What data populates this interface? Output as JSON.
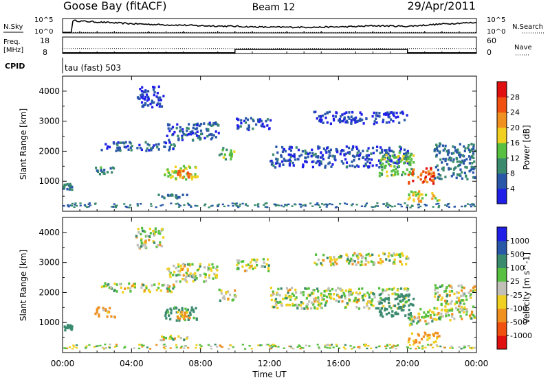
{
  "header": {
    "station": "Goose Bay (fitACF)",
    "beam": "Beam 12",
    "date": "29/Apr/2011"
  },
  "side_labels": {
    "nsky": "N.Sky",
    "nsearch": "N.Search",
    "freq_line1": "Freq.",
    "freq_line2": "[MHz]",
    "nave": "Nave",
    "cpid": "CPID",
    "cpid_text": "tau (fast) 503"
  },
  "colors": {
    "scatter_blue": "#2050b0",
    "ground_gray": "#b8b8b0",
    "frame": "#000000"
  },
  "chart_data": [
    {
      "type": "line",
      "name": "noise-panel",
      "y_tick_labels_left": [
        "10^5",
        "10^0"
      ],
      "y_tick_labels_right": [
        "10^5",
        "10^0"
      ],
      "ylim_log10": [
        0,
        5
      ],
      "series_nsky_log10": [
        [
          0.0,
          0.2
        ],
        [
          0.5,
          0.2
        ],
        [
          0.6,
          4.3
        ],
        [
          1,
          4.1
        ],
        [
          2,
          3.8
        ],
        [
          3,
          3.5
        ],
        [
          4,
          3.2
        ],
        [
          5,
          3.0
        ],
        [
          6,
          2.8
        ],
        [
          7,
          2.7
        ],
        [
          8,
          2.5
        ],
        [
          9,
          2.4
        ],
        [
          10,
          2.3
        ],
        [
          11,
          2.1
        ],
        [
          12,
          2.0
        ],
        [
          13,
          2.0
        ],
        [
          14,
          2.0
        ],
        [
          15,
          2.0
        ],
        [
          16,
          2.1
        ],
        [
          17,
          2.2
        ],
        [
          18,
          2.5
        ],
        [
          19,
          2.4
        ],
        [
          20,
          2.3
        ],
        [
          21,
          2.7
        ],
        [
          22,
          3.1
        ],
        [
          23,
          3.4
        ],
        [
          24,
          3.6
        ]
      ],
      "series_nsearch_log10": [
        [
          0.0,
          0.2
        ],
        [
          24,
          0.2
        ]
      ]
    },
    {
      "type": "line",
      "name": "freq-nave-panel",
      "y_tick_labels_left": [
        "18",
        "8"
      ],
      "y_tick_labels_right": [
        "60",
        "0"
      ],
      "freq_ylim": [
        8,
        18
      ],
      "nave_ylim": [
        0,
        60
      ],
      "series_freq_mhz": [
        [
          0,
          8.5
        ],
        [
          10,
          8.5
        ],
        [
          10,
          10.5
        ],
        [
          20,
          10.5
        ],
        [
          20,
          8.5
        ],
        [
          24,
          8.5
        ]
      ],
      "series_nave": [
        [
          0,
          18
        ],
        [
          24,
          18
        ]
      ]
    },
    {
      "type": "heatmap",
      "name": "power-panel",
      "x_unit": "hours UT",
      "xlim": [
        0,
        24
      ],
      "ylim": [
        0,
        4500
      ],
      "ylabel": "Slant Range [km]",
      "y_ticks": [
        1000,
        2000,
        3000,
        4000
      ],
      "colorbar_label": "Power [dB]",
      "colorbar_ticks": [
        "4",
        "8",
        "12",
        "16",
        "20",
        "24",
        "28"
      ],
      "colorbar_colors": [
        "#1f1fe8",
        "#2a58a8",
        "#3a8a6e",
        "#58c040",
        "#f0d020",
        "#f09020",
        "#f05010",
        "#e01010"
      ],
      "regions": [
        {
          "t0": 0.0,
          "t1": 0.5,
          "r0": 750,
          "r1": 1000,
          "value": 8
        },
        {
          "t0": 1.8,
          "t1": 3.0,
          "r0": 1250,
          "r1": 1500,
          "value": 10
        },
        {
          "t0": 2.2,
          "t1": 6.5,
          "r0": 2050,
          "r1": 2350,
          "value": 6
        },
        {
          "t0": 5.8,
          "t1": 7.8,
          "r0": 1100,
          "r1": 1550,
          "value": 16
        },
        {
          "t0": 6.6,
          "t1": 7.4,
          "r0": 1150,
          "r1": 1400,
          "value": 24
        },
        {
          "t0": 5.5,
          "t1": 7.2,
          "r0": 450,
          "r1": 600,
          "value": 8
        },
        {
          "t0": 4.2,
          "t1": 5.8,
          "r0": 3500,
          "r1": 4200,
          "value": 4
        },
        {
          "t0": 6.0,
          "t1": 9.0,
          "r0": 2400,
          "r1": 3000,
          "value": 5
        },
        {
          "t0": 9.0,
          "t1": 10.0,
          "r0": 1750,
          "r1": 2150,
          "value": 14
        },
        {
          "t0": 10.0,
          "t1": 12.0,
          "r0": 2750,
          "r1": 3150,
          "value": 5
        },
        {
          "t0": 12.0,
          "t1": 20.0,
          "r0": 1500,
          "r1": 2200,
          "value": 5
        },
        {
          "t0": 14.5,
          "t1": 20.0,
          "r0": 2950,
          "r1": 3350,
          "value": 4
        },
        {
          "t0": 18.3,
          "t1": 20.3,
          "r0": 1200,
          "r1": 2000,
          "value": 14
        },
        {
          "t0": 20.0,
          "t1": 21.5,
          "r0": 950,
          "r1": 1500,
          "value": 26
        },
        {
          "t0": 20.0,
          "t1": 21.8,
          "r0": 350,
          "r1": 700,
          "value": 18
        },
        {
          "t0": 21.5,
          "t1": 24.0,
          "r0": 1100,
          "r1": 2300,
          "value": 8
        },
        {
          "t0": 0.0,
          "t1": 24.0,
          "r0": 150,
          "r1": 300,
          "value": 8
        }
      ]
    },
    {
      "type": "heatmap",
      "name": "velocity-panel",
      "x_unit": "hours UT",
      "xlim": [
        0,
        24
      ],
      "ylim": [
        0,
        4500
      ],
      "ylabel": "Slant Range [km]",
      "xlabel": "Time UT",
      "x_tick_labels": [
        "00:00",
        "04:00",
        "08:00",
        "12:00",
        "16:00",
        "20:00",
        "00:00"
      ],
      "y_ticks": [
        1000,
        2000,
        3000,
        4000
      ],
      "colorbar_label": "Velocity [m s^-1]",
      "colorbar_ticks": [
        "1000",
        "500",
        "100",
        "25",
        "-25",
        "-100",
        "-500",
        "-1000"
      ],
      "colorbar_colors": [
        "#1f1fe8",
        "#2a58a8",
        "#3a8a6e",
        "#58c040",
        "#c0c0b8",
        "#f0d020",
        "#f09020",
        "#f05010",
        "#e01010"
      ],
      "regions": [
        {
          "t0": 0.0,
          "t1": 0.5,
          "r0": 750,
          "r1": 1000,
          "value": 300
        },
        {
          "t0": 1.8,
          "t1": 3.0,
          "r0": 1200,
          "r1": 1550,
          "value": -100
        },
        {
          "t0": 2.2,
          "t1": 6.5,
          "r0": 2050,
          "r1": 2350,
          "value": 0
        },
        {
          "t0": 5.8,
          "t1": 7.8,
          "r0": 1100,
          "r1": 1550,
          "value": 200
        },
        {
          "t0": 6.6,
          "t1": 7.4,
          "r0": 1150,
          "r1": 1400,
          "value": -150
        },
        {
          "t0": 5.5,
          "t1": 7.2,
          "r0": 450,
          "r1": 600,
          "value": 0
        },
        {
          "t0": 4.2,
          "t1": 5.8,
          "r0": 3500,
          "r1": 4200,
          "value": 0
        },
        {
          "t0": 6.0,
          "t1": 9.0,
          "r0": 2400,
          "r1": 3000,
          "value": 0
        },
        {
          "t0": 9.0,
          "t1": 10.0,
          "r0": 1750,
          "r1": 2150,
          "value": 0
        },
        {
          "t0": 10.0,
          "t1": 12.0,
          "r0": 2750,
          "r1": 3150,
          "value": 0
        },
        {
          "t0": 12.0,
          "t1": 20.0,
          "r0": 1500,
          "r1": 2200,
          "value": 0
        },
        {
          "t0": 14.5,
          "t1": 20.0,
          "r0": 2950,
          "r1": 3350,
          "value": 0
        },
        {
          "t0": 18.3,
          "t1": 20.3,
          "r0": 1200,
          "r1": 2000,
          "value": 250
        },
        {
          "t0": 20.0,
          "t1": 21.5,
          "r0": 950,
          "r1": 1500,
          "value": 0
        },
        {
          "t0": 20.0,
          "t1": 21.8,
          "r0": 350,
          "r1": 700,
          "value": -150
        },
        {
          "t0": 21.5,
          "t1": 24.0,
          "r0": 1100,
          "r1": 2300,
          "value": 0
        },
        {
          "t0": 0.0,
          "t1": 24.0,
          "r0": 150,
          "r1": 300,
          "value": 0
        }
      ]
    }
  ]
}
